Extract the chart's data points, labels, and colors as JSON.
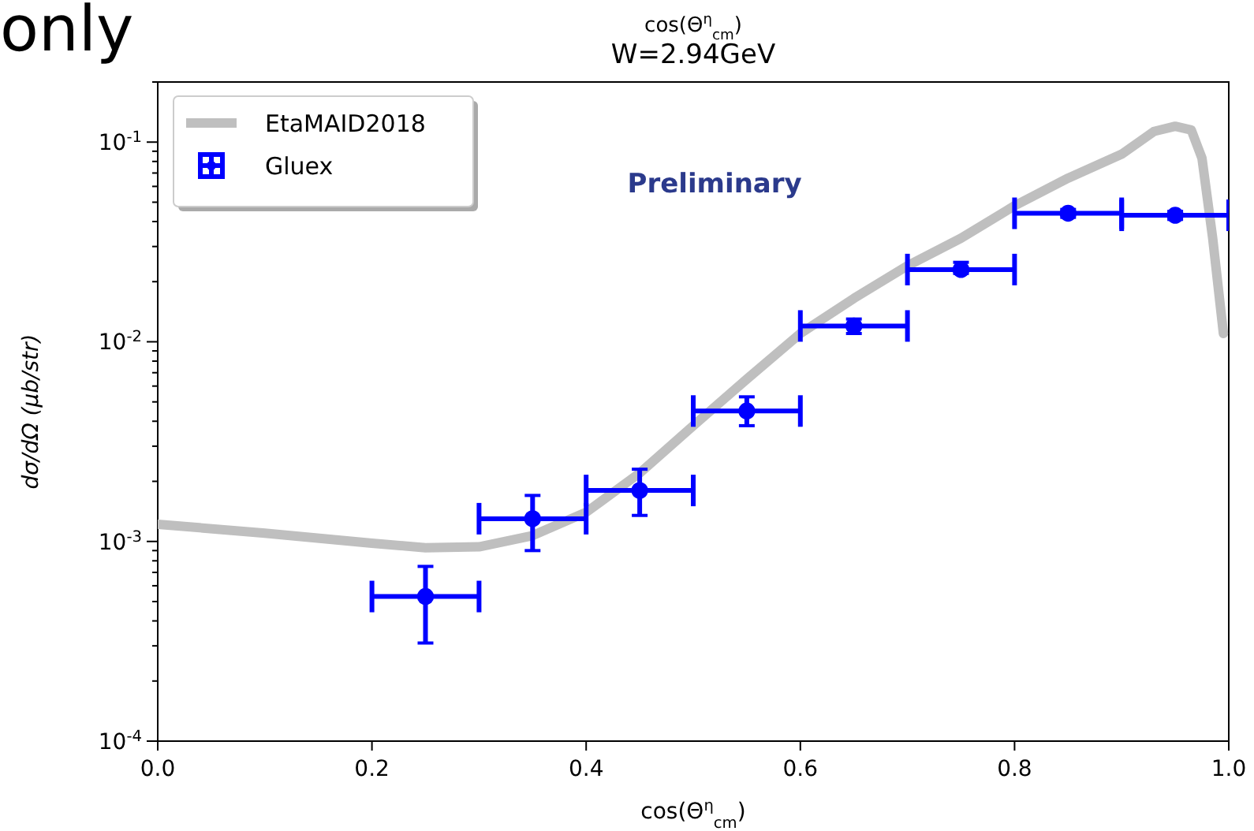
{
  "chart_data": {
    "type": "scatter",
    "title": "cos(Θ$^{η}$$_{cm}$)",
    "subtitle": "W=2.94GeV",
    "xlabel": "cos(Θ$^{η}$$_{cm}$)",
    "ylabel": "dσ/dΩ (μb/str)",
    "annotations": [
      "only",
      "Preliminary"
    ],
    "log": "y",
    "xlim": [
      0,
      1
    ],
    "ylim": [
      0.0001,
      0.2
    ],
    "xticks": [
      {
        "value": 0,
        "label": "0.0"
      },
      0.2,
      0.4,
      0.6,
      0.8,
      {
        "value": 1,
        "label": "1.0"
      }
    ],
    "yticks": [
      {
        "value": 0.0001,
        "label": "10$^{-4}$"
      },
      {
        "value": 0.0002,
        "label": null
      },
      {
        "value": 0.0003,
        "label": null
      },
      {
        "value": 0.0004,
        "label": null
      },
      {
        "value": 0.0005,
        "label": null
      },
      {
        "value": 0.0006,
        "label": null
      },
      {
        "value": 0.0007,
        "label": null
      },
      {
        "value": 0.0008,
        "label": null
      },
      {
        "value": 0.0009,
        "label": null
      },
      {
        "value": 0.001,
        "label": "10$^{-3}$"
      },
      {
        "value": 0.002,
        "label": null
      },
      {
        "value": 0.003,
        "label": null
      },
      {
        "value": 0.004,
        "label": null
      },
      {
        "value": 0.005,
        "label": null
      },
      {
        "value": 0.006,
        "label": null
      },
      {
        "value": 0.007,
        "label": null
      },
      {
        "value": 0.008,
        "label": null
      },
      {
        "value": 0.009,
        "label": null
      },
      {
        "value": 0.01,
        "label": "10$^{-2}$"
      },
      {
        "value": 0.02,
        "label": null
      },
      {
        "value": 0.03,
        "label": null
      },
      {
        "value": 0.04,
        "label": null
      },
      {
        "value": 0.05,
        "label": null
      },
      {
        "value": 0.06,
        "label": null
      },
      {
        "value": 0.07,
        "label": null
      },
      {
        "value": 0.08,
        "label": null
      },
      {
        "value": 0.09,
        "label": null
      },
      {
        "value": 0.1,
        "label": "10$^{-1}$"
      },
      {
        "value": 0.2,
        "label": null
      }
    ],
    "legend": "top left",
    "grid": false,
    "series": [
      {
        "name": "EtaMAID2018",
        "type": "line",
        "color": "#bfbfbf",
        "marker": "none",
        "line_style": "solid",
        "x": [
          0,
          0.1,
          0.2,
          0.25,
          0.3,
          0.35,
          0.4,
          0.45,
          0.5,
          0.55,
          0.6,
          0.65,
          0.7,
          0.75,
          0.8,
          0.85,
          0.9,
          0.93,
          0.95,
          0.965,
          0.975,
          0.985,
          0.995
        ],
        "values": [
          0.00122,
          0.0011,
          0.00098,
          0.00093,
          0.00094,
          0.00107,
          0.0014,
          0.0022,
          0.0038,
          0.0065,
          0.011,
          0.0165,
          0.024,
          0.033,
          0.048,
          0.066,
          0.087,
          0.113,
          0.12,
          0.115,
          0.083,
          0.033,
          0.011
        ]
      },
      {
        "name": "Gluex",
        "color": "#0000ff",
        "marker": "circle",
        "x": [
          0.25,
          0.35,
          0.45,
          0.55,
          0.65,
          0.75,
          0.85,
          0.95
        ],
        "values": [
          0.00053,
          0.0013,
          0.0018,
          0.0045,
          0.012,
          0.023,
          0.044,
          0.043
        ],
        "errors": [
          [
            0.00031,
            0.00075
          ],
          [
            0.0009,
            0.0017
          ],
          [
            0.00135,
            0.0023
          ],
          [
            0.0038,
            0.0053
          ],
          [
            0.011,
            0.013
          ],
          [
            0.022,
            0.025
          ],
          [
            0.042,
            0.046
          ],
          [
            0.041,
            0.045
          ]
        ],
        "xerrors": [
          0.05,
          0.05,
          0.05,
          0.05,
          0.05,
          0.05,
          0.05,
          0.05
        ]
      }
    ]
  }
}
